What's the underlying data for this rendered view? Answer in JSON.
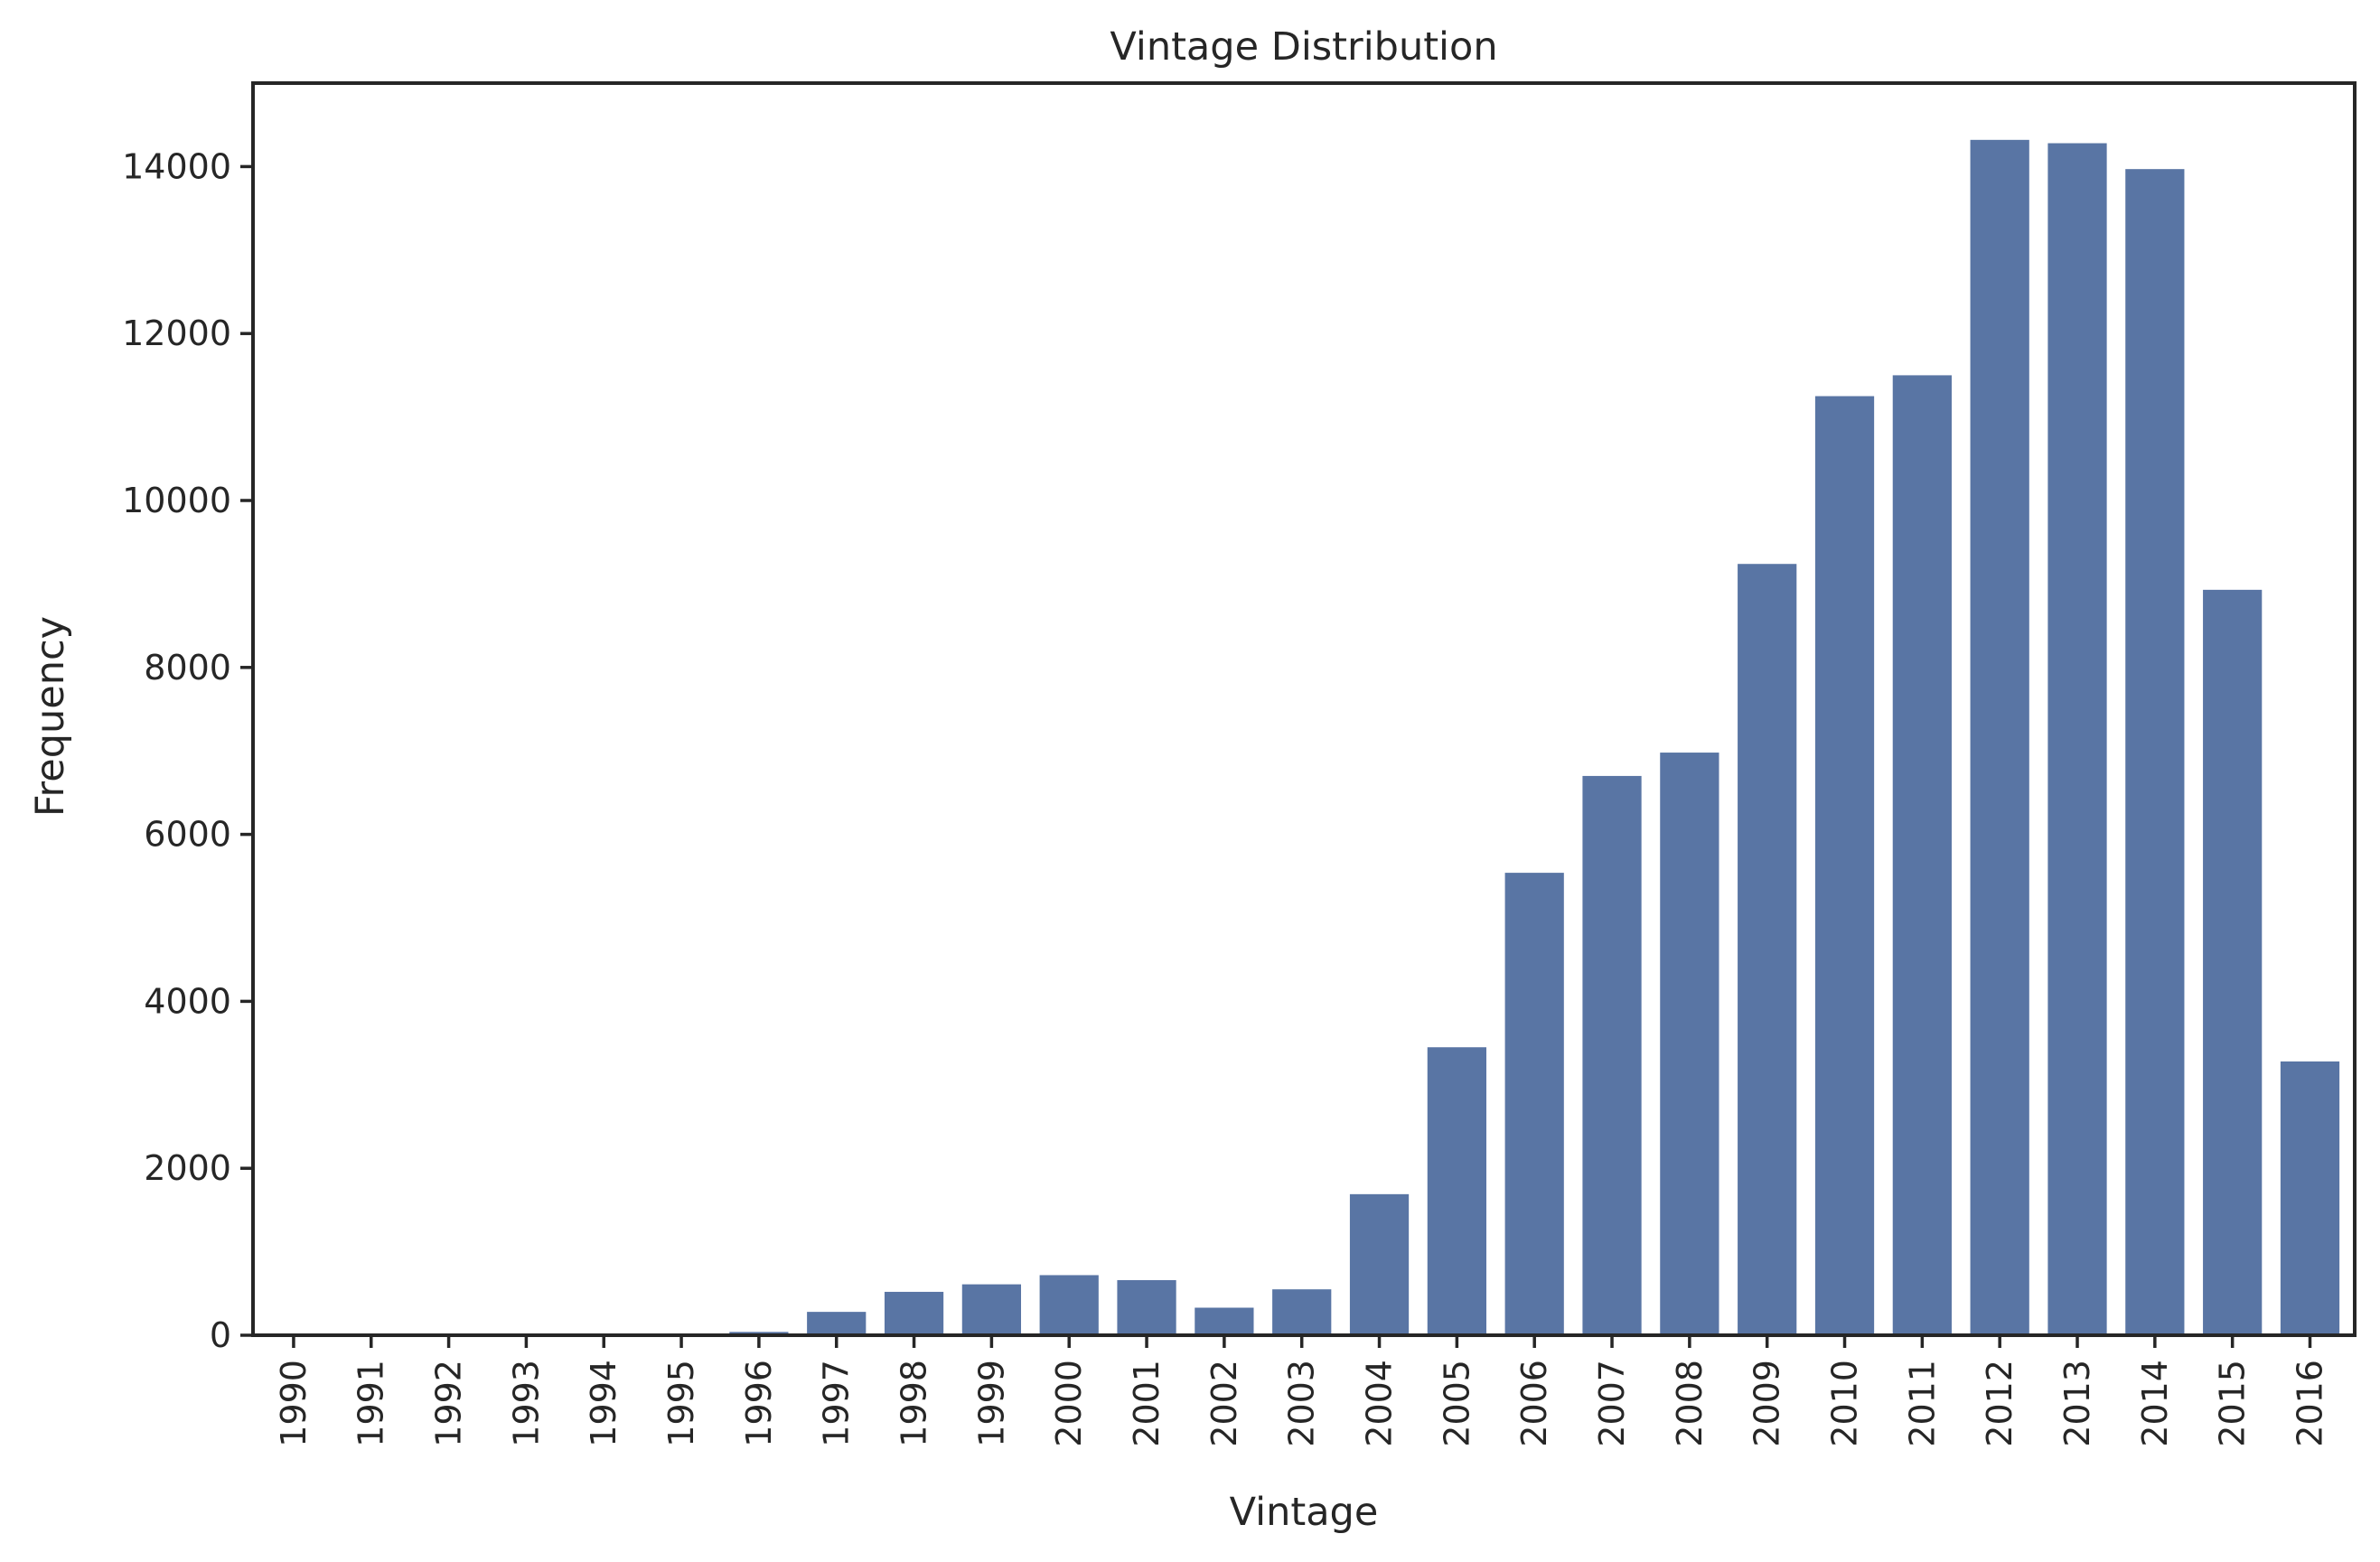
{
  "chart_data": {
    "type": "bar",
    "title": "Vintage Distribution",
    "xlabel": "Vintage",
    "ylabel": "Frequency",
    "categories": [
      "1990",
      "1991",
      "1992",
      "1993",
      "1994",
      "1995",
      "1996",
      "1997",
      "1998",
      "1999",
      "2000",
      "2001",
      "2002",
      "2003",
      "2004",
      "2005",
      "2006",
      "2007",
      "2008",
      "2009",
      "2010",
      "2011",
      "2012",
      "2013",
      "2014",
      "2015",
      "2016"
    ],
    "values": [
      2,
      3,
      4,
      5,
      5,
      8,
      40,
      280,
      520,
      610,
      720,
      660,
      330,
      550,
      1690,
      3450,
      5540,
      6700,
      6980,
      9240,
      11250,
      11500,
      14320,
      14280,
      13970,
      8930,
      3280
    ],
    "ylim": [
      0,
      15000
    ],
    "yticks": [
      0,
      2000,
      4000,
      6000,
      8000,
      10000,
      12000,
      14000
    ],
    "bar_color": "#5975a4",
    "grid": false
  }
}
